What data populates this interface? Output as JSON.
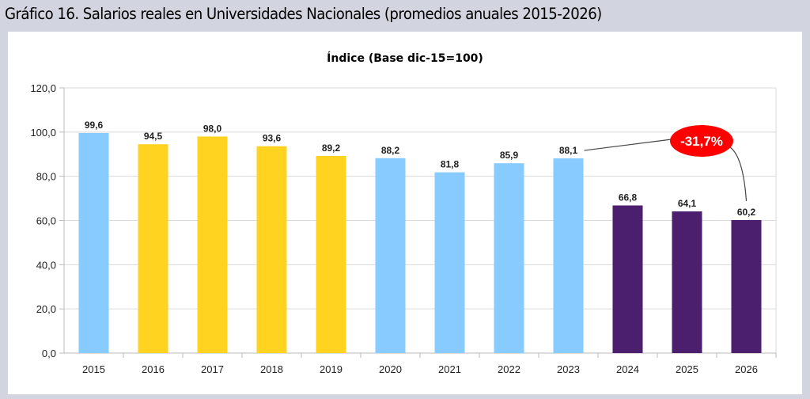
{
  "header": {
    "title": "Gráfico 16.  Salarios reales en Universidades Nacionales (promedios anuales 2015-2026)"
  },
  "chart_data": {
    "type": "bar",
    "title": "Índice (Base dic-15=100)",
    "xlabel": "",
    "ylabel": "",
    "ylim": [
      0,
      120
    ],
    "yticks": [
      "0,0",
      "20,0",
      "40,0",
      "60,0",
      "80,0",
      "100,0",
      "120,0"
    ],
    "grid": true,
    "categories": [
      "2015",
      "2016",
      "2017",
      "2018",
      "2019",
      "2020",
      "2021",
      "2022",
      "2023",
      "2024",
      "2025",
      "2026"
    ],
    "values": [
      99.6,
      94.5,
      98.0,
      93.6,
      89.2,
      88.2,
      81.8,
      85.9,
      88.1,
      66.8,
      64.1,
      60.2
    ],
    "labels": [
      "99,6",
      "94,5",
      "98,0",
      "93,6",
      "89,2",
      "88,2",
      "81,8",
      "85,9",
      "88,1",
      "66,8",
      "64,1",
      "60,2"
    ],
    "bar_colors": [
      "#87cbff",
      "#ffd320",
      "#ffd320",
      "#ffd320",
      "#ffd320",
      "#87cbff",
      "#87cbff",
      "#87cbff",
      "#87cbff",
      "#4b1f6e",
      "#4b1f6e",
      "#4b1f6e"
    ],
    "annotation": {
      "text": "-31,7%",
      "from": "2023",
      "to": "2026",
      "color": "#ff0000"
    }
  }
}
